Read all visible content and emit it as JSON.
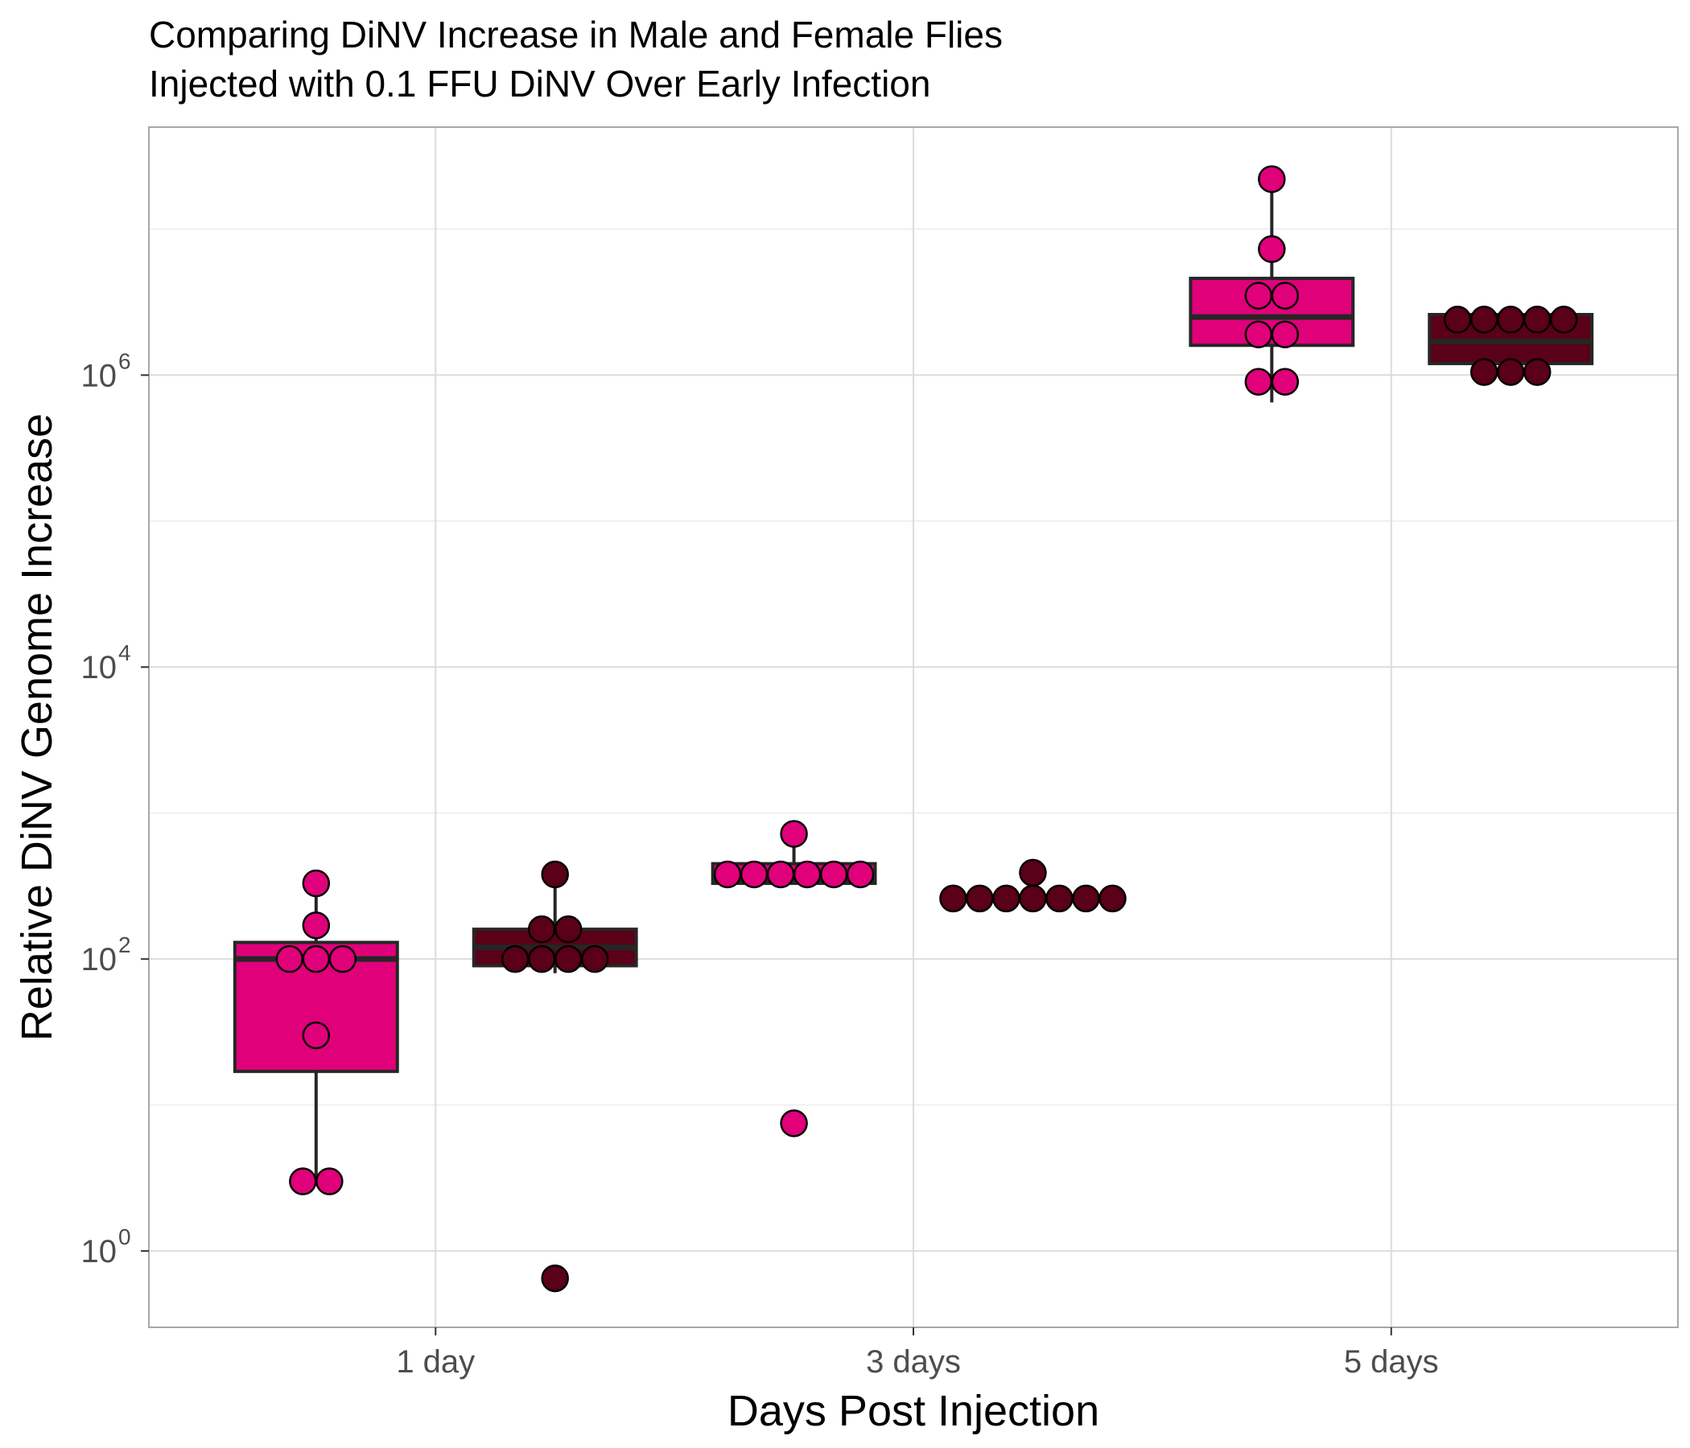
{
  "chart_data": {
    "type": "box",
    "title": "Comparing DiNV Increase in Male and Female Flies",
    "subtitle": "Injected with 0.1 FFU DiNV Over Early Infection",
    "xlabel": "Days Post Injection",
    "ylabel": "Relative DiNV Genome Increase",
    "y_scale": "log10",
    "ylim": [
      0.3,
      50000000
    ],
    "y_ticks": [
      {
        "value": 1,
        "base": "10",
        "exp": "0"
      },
      {
        "value": 100,
        "base": "10",
        "exp": "2"
      },
      {
        "value": 10000,
        "base": "10",
        "exp": "4"
      },
      {
        "value": 1000000,
        "base": "10",
        "exp": "6"
      }
    ],
    "grid": true,
    "legend": "none",
    "categories": [
      "1 day",
      "3 days",
      "5 days"
    ],
    "series": [
      {
        "color": "#e0007a",
        "boxes": [
          {
            "min": 3,
            "q1": 17,
            "median": 100,
            "q3": 130,
            "max": 330
          },
          {
            "min": 330,
            "q1": 330,
            "median": 350,
            "q3": 450,
            "max": 720
          },
          {
            "min": 650000,
            "q1": 1600000,
            "median": 2500000,
            "q3": 4600000,
            "max": 22000000
          }
        ],
        "points": [
          [
            330,
            170,
            100,
            100,
            100,
            30,
            3,
            3
          ],
          [
            720,
            380,
            380,
            380,
            380,
            380,
            380,
            7.5
          ],
          [
            22000000,
            7300000,
            3500000,
            3500000,
            1900000,
            1900000,
            900000,
            900000
          ]
        ]
      },
      {
        "color": "#5a0018",
        "boxes": [
          {
            "min": 80,
            "q1": 90,
            "median": 120,
            "q3": 160,
            "max": 380
          },
          {
            "min": 240,
            "q1": 250,
            "median": 260,
            "q3": 260,
            "max": 390
          },
          {
            "min": 1050000,
            "q1": 1200000,
            "median": 1700000,
            "q3": 2600000,
            "max": 2600000
          }
        ],
        "points": [
          [
            380,
            160,
            160,
            100,
            100,
            100,
            100,
            0.65
          ],
          [
            390,
            260,
            260,
            260,
            260,
            260,
            260,
            260
          ],
          [
            2400000,
            2400000,
            2400000,
            2400000,
            2400000,
            1050000,
            1050000,
            1050000
          ]
        ]
      }
    ]
  }
}
